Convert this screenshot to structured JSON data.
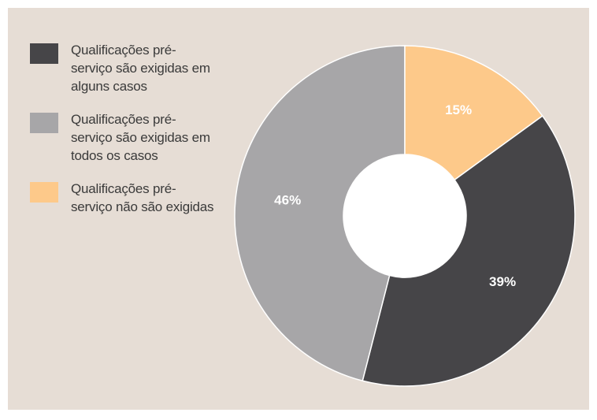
{
  "chart_data": {
    "type": "pie",
    "categories": [
      "Qualificações pré-serviço são exigidas em alguns casos",
      "Qualificações pré-serviço são exigidas em todos os casos",
      "Qualificações pré-serviço não são exigidas"
    ],
    "values": [
      39,
      46,
      15
    ],
    "value_labels": [
      "39%",
      "46%",
      "15%"
    ],
    "colors": [
      "#464548",
      "#a7a6a8",
      "#fdc98a"
    ],
    "donut": true
  }
}
